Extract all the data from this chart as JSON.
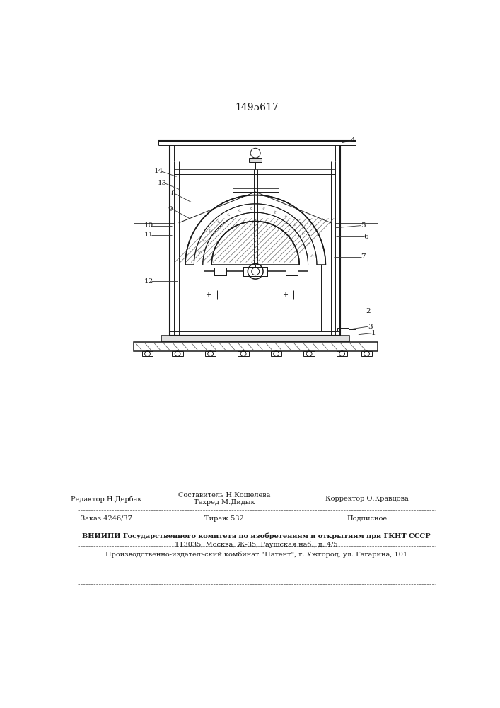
{
  "patent_number": "1495617",
  "bg_color": "#ffffff",
  "line_color": "#1a1a1a",
  "title_fontsize": 10,
  "label_fontsize": 7.5,
  "bottom_text": {
    "sostavitel": "Составитель Н.Кошелева",
    "tekhred": "Техред М.Дидык",
    "korrektor": "Корректор О.Кравцова",
    "redaktor": "Редактор Н.Дербак",
    "zakaz": "Заказ 4246/37",
    "tirazh": "Тираж 532",
    "podpisnoe": "Подписное",
    "vniiipi": "ВНИИПИ Государственного комитета по изобретениям и открытиям при ГКНТ СССР",
    "address": "113035, Москва, Ж-35, Раушская наб., д. 4/5",
    "kombinat": "Производственно-издательский комбинат \"Патент\", г. Ужгород, ул. Гагарина, 101"
  }
}
